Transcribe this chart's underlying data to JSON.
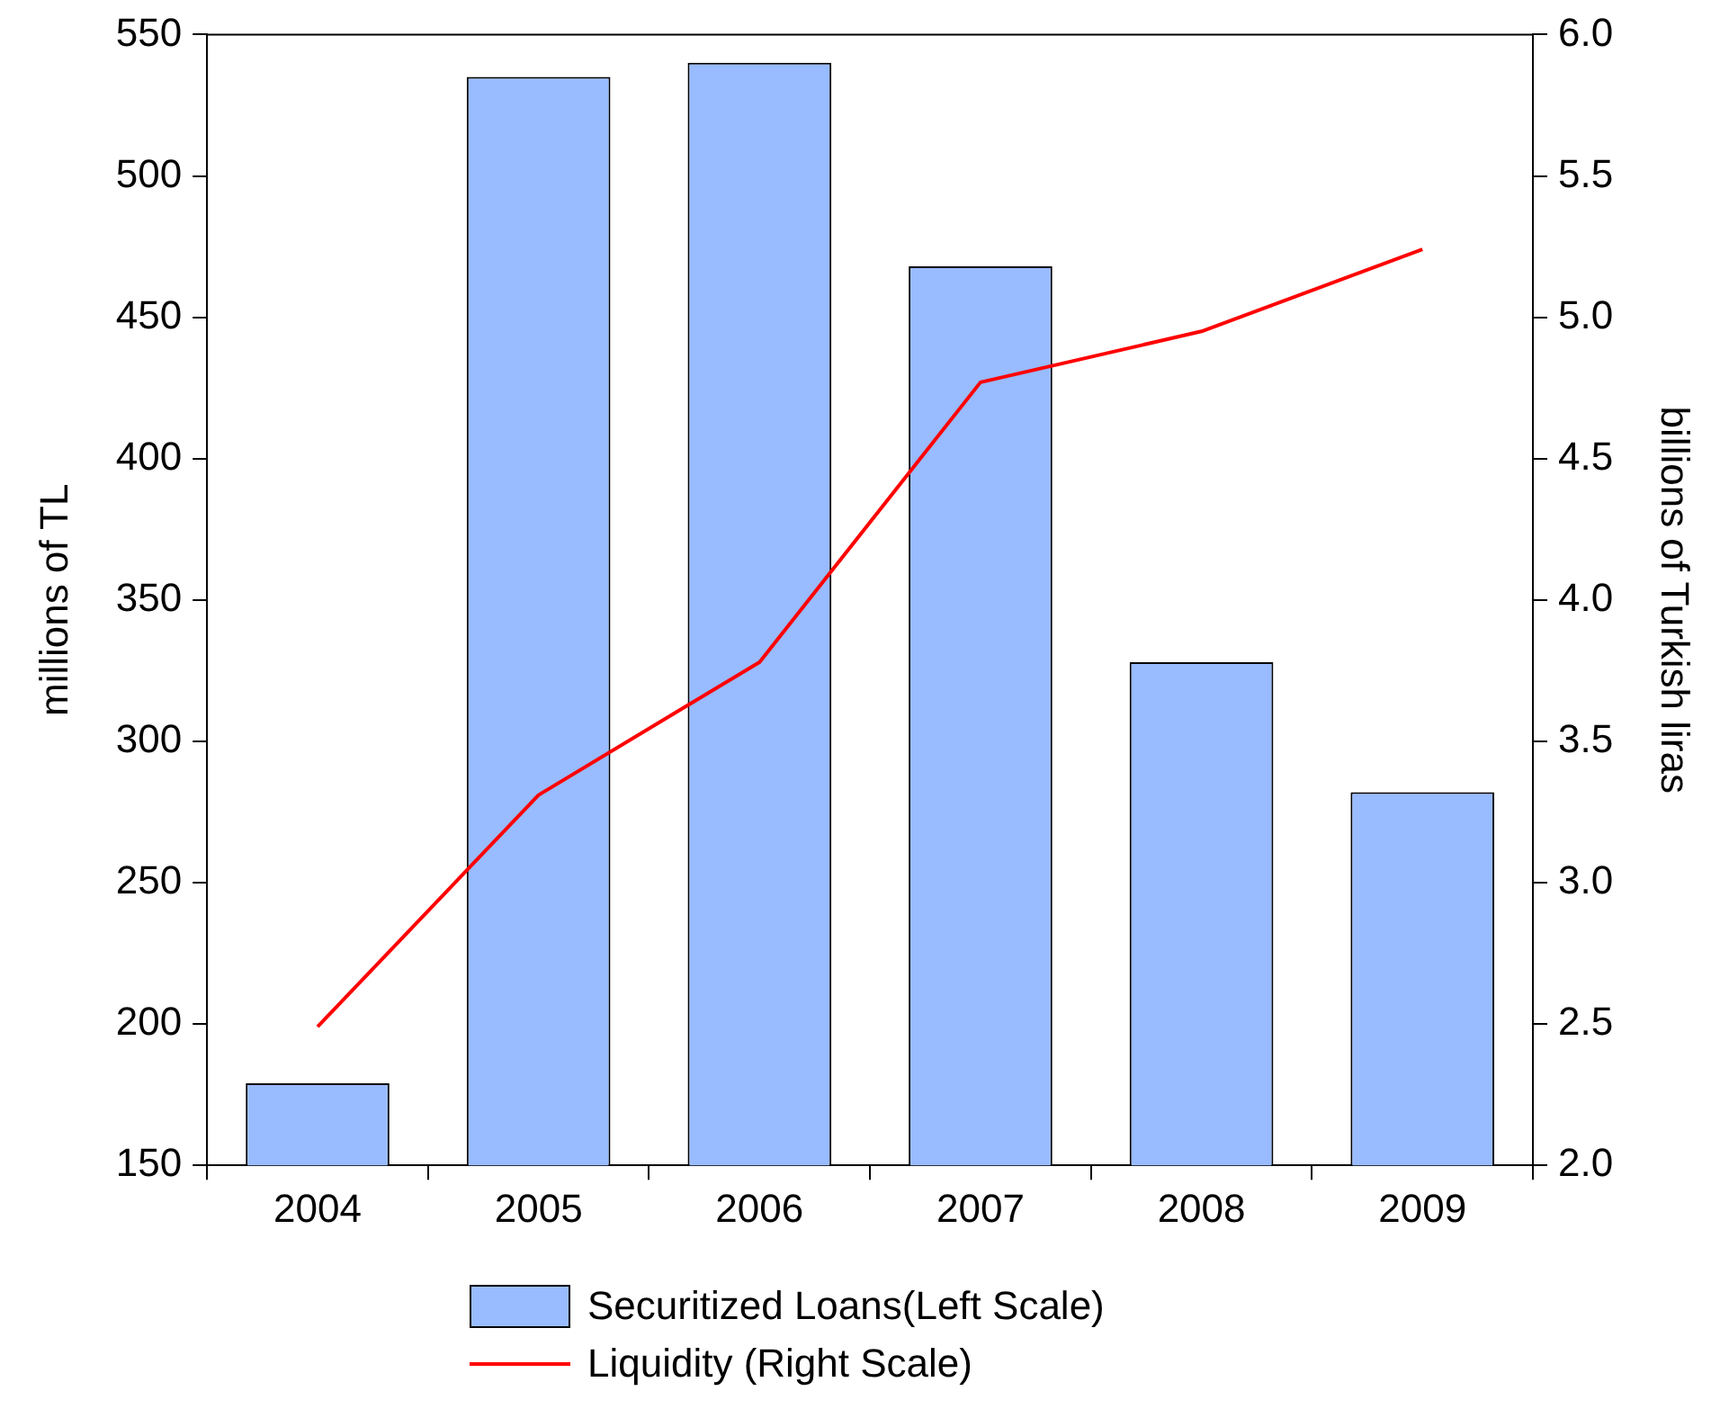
{
  "chart_data": {
    "type": "bar",
    "categories": [
      "2004",
      "2005",
      "2006",
      "2007",
      "2008",
      "2009"
    ],
    "series": [
      {
        "name": "Securitized Loans(Left Scale)",
        "color": "#99bbff",
        "values": [
          179,
          535,
          540,
          468,
          328,
          282
        ]
      },
      {
        "name": "Liquidity (Right Scale)",
        "type": "line",
        "axis": "y2",
        "color": "#ff0000",
        "values": [
          2.49,
          3.31,
          3.78,
          4.77,
          4.95,
          5.24
        ]
      }
    ],
    "ylabel": "millions of TL",
    "y2label": "billions of Turkish liras",
    "ylim": [
      150,
      550
    ],
    "yticks": [
      150,
      200,
      250,
      300,
      350,
      400,
      450,
      500,
      550
    ],
    "y2lim": [
      2.0,
      6.0
    ],
    "y2ticks": [
      {
        "value": 2,
        "label": "2.0"
      },
      {
        "value": 2.5,
        "label": "2.5"
      },
      {
        "value": 3,
        "label": "3.0"
      },
      {
        "value": 3.5,
        "label": "3.5"
      },
      {
        "value": 4,
        "label": "4.0"
      },
      {
        "value": 4.5,
        "label": "4.5"
      },
      {
        "value": 5,
        "label": "5.0"
      },
      {
        "value": 5.5,
        "label": "5.5"
      },
      {
        "value": 6,
        "label": "6.0"
      }
    ],
    "grid": false,
    "legend": "bottom",
    "marker": "none",
    "line_style": "solid"
  }
}
